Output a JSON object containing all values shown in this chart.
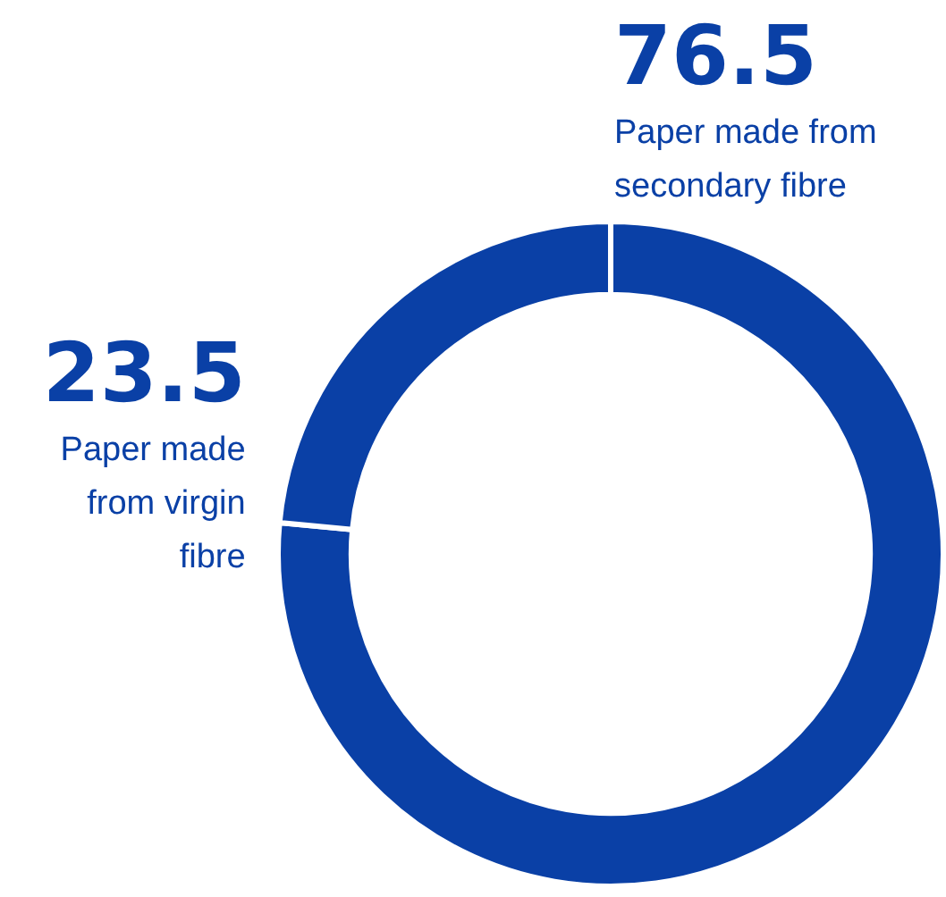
{
  "chart_data": {
    "type": "donut",
    "categories": [
      "Paper made from secondary fibre",
      "Paper made from virgin fibre"
    ],
    "values": [
      76.5,
      23.5
    ],
    "colors": [
      "#0a40a6",
      "#0a40a6"
    ],
    "data_labels": true,
    "legend": false
  }
}
